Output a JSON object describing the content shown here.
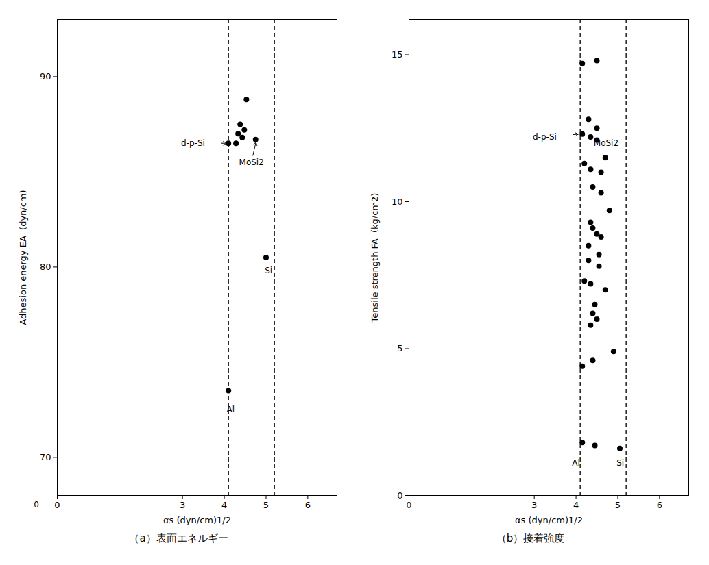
{
  "chart_data": [
    {
      "type": "scatter",
      "subtitle": "（a）表面エネルギー",
      "xlabel": "αs (dyn/cm)1/2",
      "ylabel": "Adhesion energy EA  (dyn/cm)",
      "xlim": [
        0,
        6.7
      ],
      "ylim": [
        68,
        93
      ],
      "xticks": [
        0,
        3,
        4,
        5,
        6
      ],
      "yticks": [
        70,
        80,
        90
      ],
      "grid": false,
      "color": "#000000",
      "x": [
        4.1,
        4.28,
        4.33,
        4.38,
        4.43,
        4.48,
        4.53,
        4.75,
        4.1,
        5.0
      ],
      "values": [
        86.5,
        86.5,
        87.0,
        87.5,
        86.8,
        87.2,
        88.8,
        86.7,
        73.5,
        80.5
      ],
      "vlines": [
        4.1,
        5.2
      ],
      "annotations": [
        {
          "text": "d-p-Si",
          "x": 3.25,
          "y": 86.5,
          "arrow_x": 4.07,
          "arrow_y": 86.5
        },
        {
          "text": "MoSi2",
          "x": 4.65,
          "y": 85.5,
          "arrow_x": 4.76,
          "arrow_y": 86.6
        },
        {
          "text": "Al",
          "x": 4.15,
          "y": 72.5
        },
        {
          "text": "Si",
          "x": 5.06,
          "y": 79.8
        },
        {
          "text": "0",
          "x": -0.5,
          "y": 67.5
        }
      ]
    },
    {
      "type": "scatter",
      "subtitle": "（b）接着強度",
      "xlabel": "αs (dyn/cm)1/2",
      "ylabel": "Tensile strength FA  (kg/cm2)",
      "xlim": [
        0,
        6.7
      ],
      "ylim": [
        0,
        16.2
      ],
      "xticks": [
        0,
        3,
        4,
        5,
        6
      ],
      "yticks": [
        0,
        5,
        10,
        15
      ],
      "grid": false,
      "color": "#000000",
      "x": [
        4.15,
        4.5,
        4.3,
        4.5,
        4.15,
        4.35,
        4.5,
        4.2,
        4.35,
        4.6,
        4.7,
        4.4,
        4.6,
        4.8,
        4.35,
        4.4,
        4.5,
        4.6,
        4.3,
        4.55,
        4.3,
        4.55,
        4.2,
        4.35,
        4.7,
        4.45,
        4.4,
        4.5,
        4.35,
        4.4,
        4.15,
        4.9,
        4.15,
        4.45,
        5.05
      ],
      "values": [
        14.7,
        14.8,
        12.8,
        12.5,
        12.3,
        12.2,
        12.1,
        11.3,
        11.1,
        11.0,
        11.5,
        10.5,
        10.3,
        9.7,
        9.3,
        9.1,
        8.9,
        8.8,
        8.5,
        8.2,
        8.0,
        7.8,
        7.3,
        7.2,
        7.0,
        6.5,
        6.2,
        6.0,
        5.8,
        4.6,
        4.4,
        4.9,
        1.8,
        1.7,
        1.6
      ],
      "vlines": [
        4.1,
        5.2
      ],
      "annotations": [
        {
          "text": "d-p-Si",
          "x": 3.25,
          "y": 12.2,
          "arrow_x": 4.07,
          "arrow_y": 12.3
        },
        {
          "text": "MoSi2",
          "x": 4.72,
          "y": 12.0
        },
        {
          "text": "Al",
          "x": 4.0,
          "y": 1.1
        },
        {
          "text": "Si",
          "x": 5.06,
          "y": 1.1
        }
      ]
    }
  ]
}
